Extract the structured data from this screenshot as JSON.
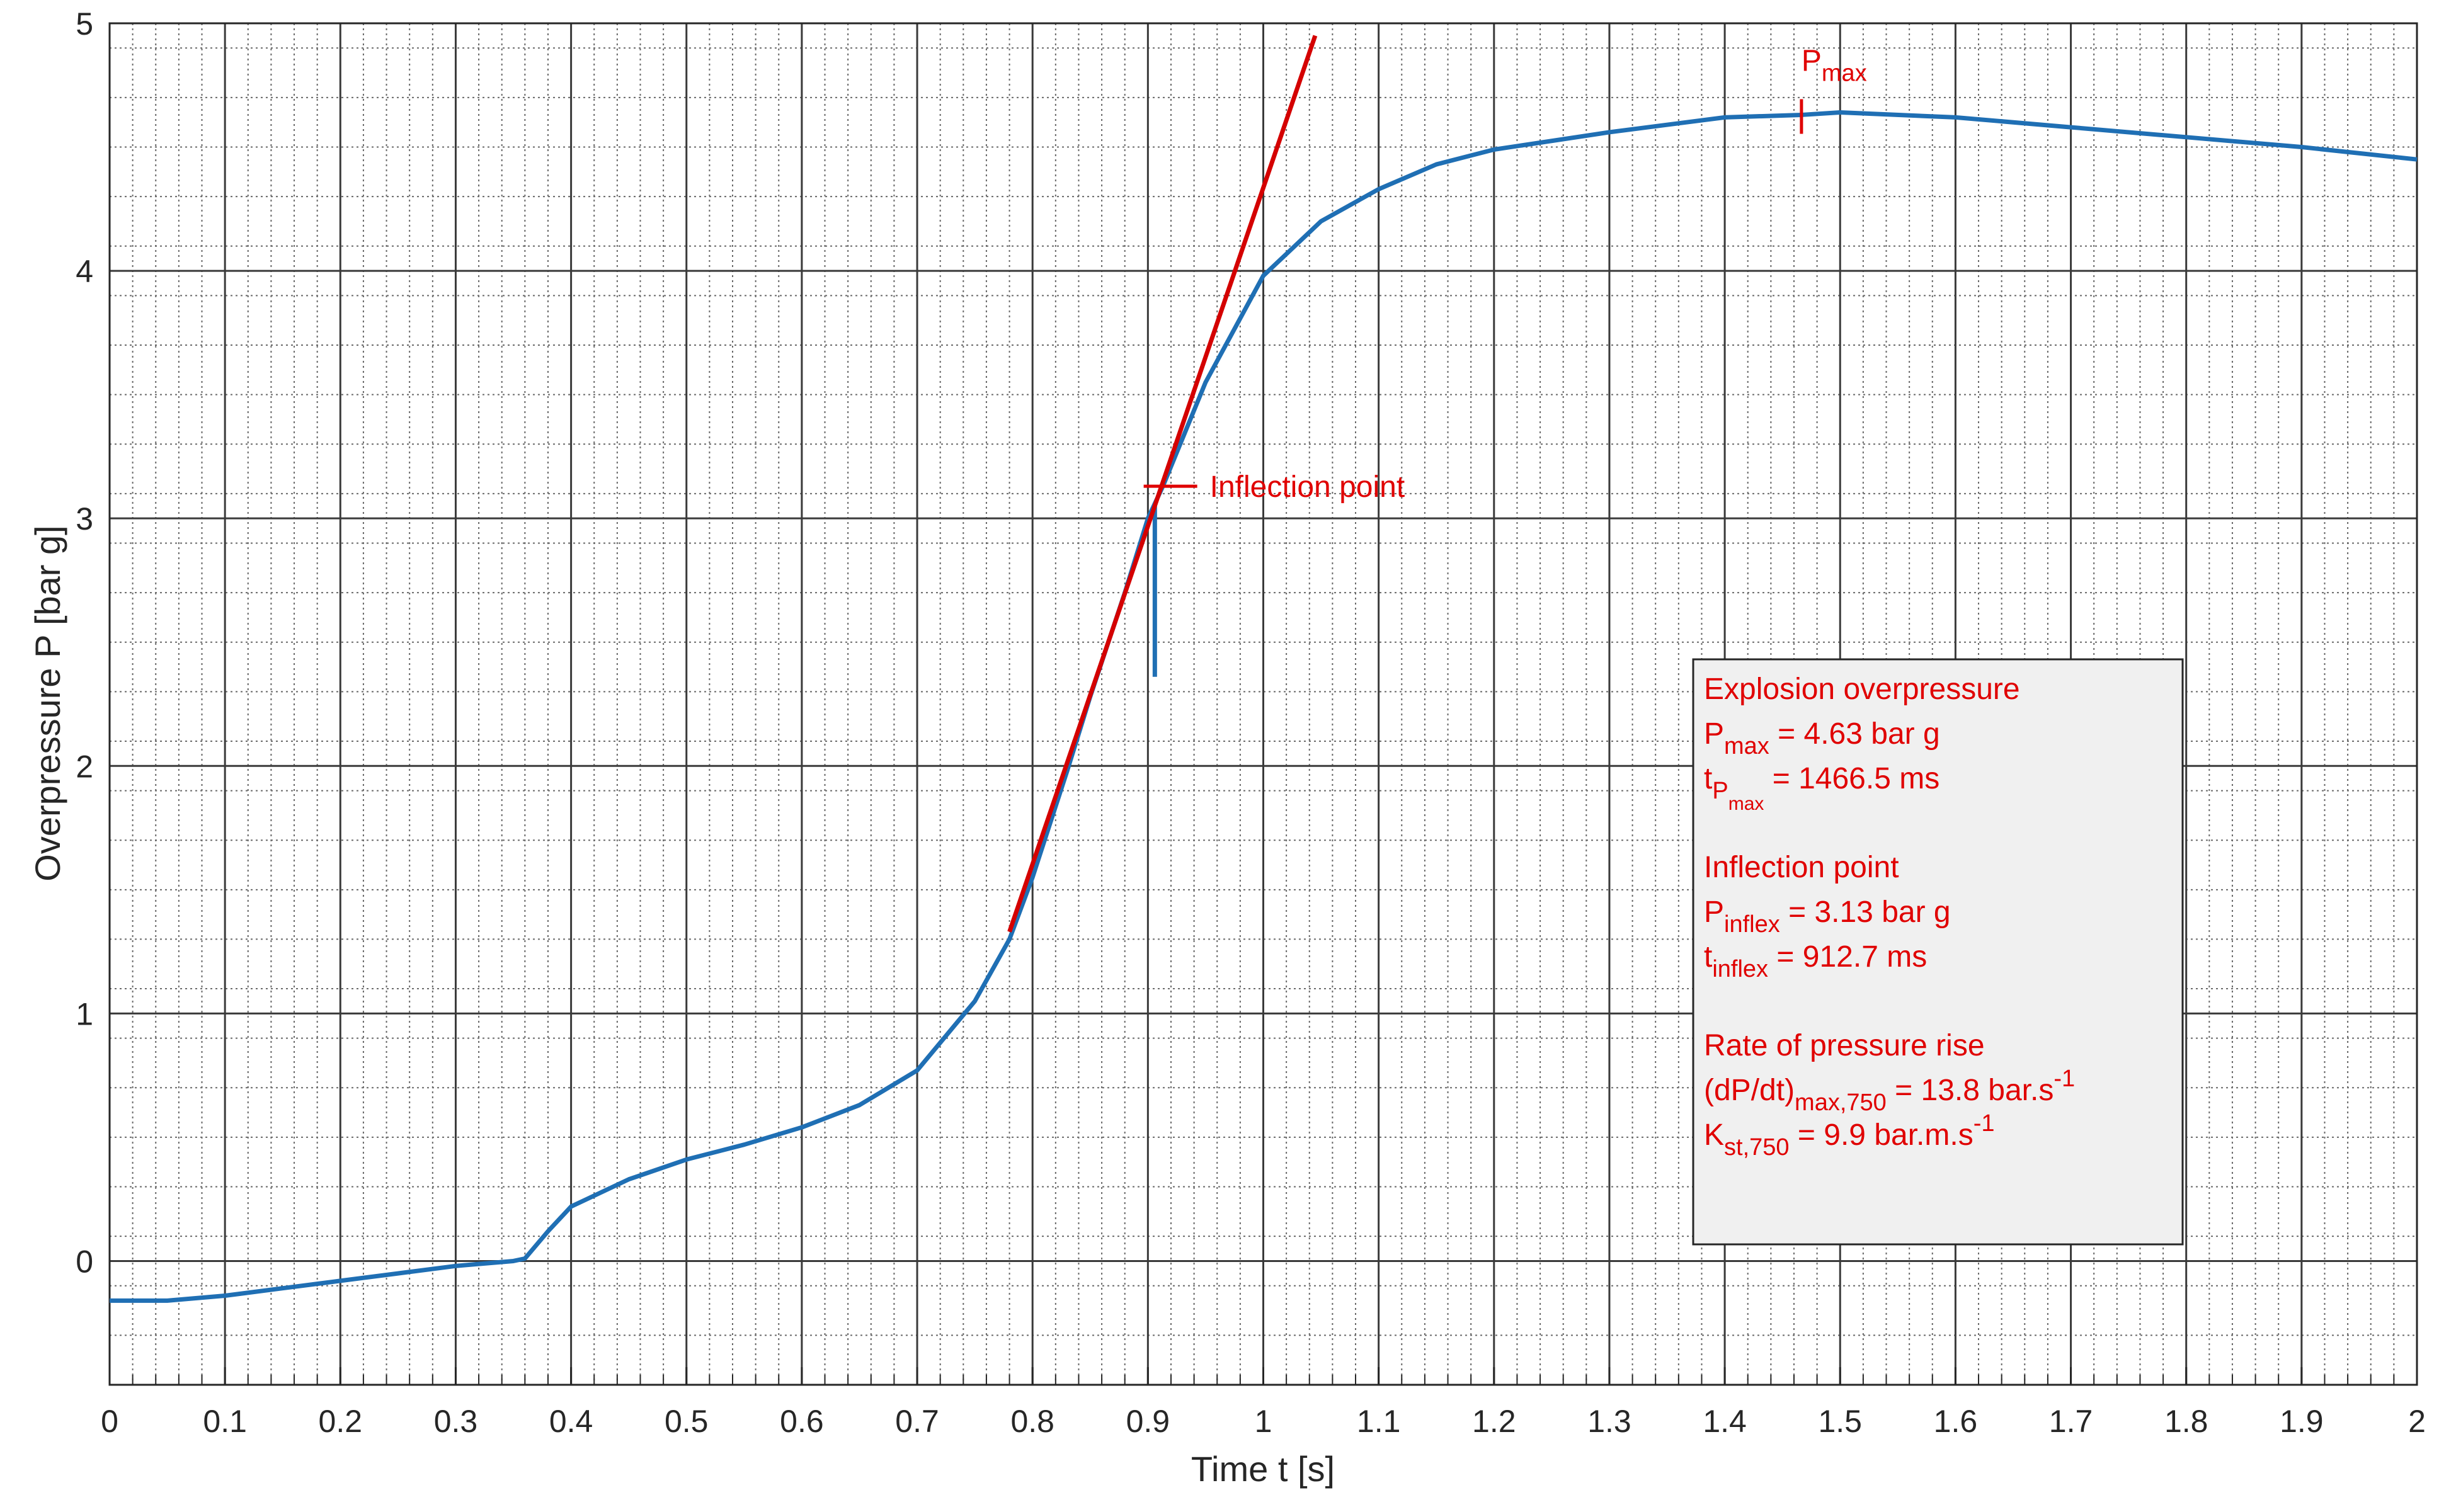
{
  "chart_data": {
    "type": "line",
    "xlabel": "Time t [s]",
    "ylabel": "Overpressure P [bar g]",
    "xlim": [
      0,
      2
    ],
    "ylim": [
      -0.5,
      5
    ],
    "xticks": [
      0,
      0.1,
      0.2,
      0.3,
      0.4,
      0.5,
      0.6,
      0.7,
      0.8,
      0.9,
      1,
      1.1,
      1.2,
      1.3,
      1.4,
      1.5,
      1.6,
      1.7,
      1.8,
      1.9,
      2
    ],
    "yticks": [
      0,
      1,
      2,
      3,
      4,
      5
    ],
    "grid": true,
    "minor_grid": {
      "x": 0.02,
      "y": 0.2
    },
    "series": [
      {
        "color": "#1f6fb4",
        "x": [
          0,
          0.05,
          0.1,
          0.15,
          0.2,
          0.25,
          0.3,
          0.35,
          0.36,
          0.38,
          0.4,
          0.45,
          0.5,
          0.55,
          0.6,
          0.65,
          0.7,
          0.75,
          0.78,
          0.8,
          0.83,
          0.85,
          0.88,
          0.9,
          0.913,
          0.95,
          1.0,
          1.05,
          1.1,
          1.15,
          1.2,
          1.3,
          1.4,
          1.4665,
          1.5,
          1.6,
          1.7,
          1.8,
          1.9,
          2.0
        ],
        "values": [
          -0.16,
          -0.16,
          -0.14,
          -0.11,
          -0.08,
          -0.05,
          -0.02,
          0.0,
          0.01,
          0.12,
          0.22,
          0.33,
          0.41,
          0.47,
          0.54,
          0.63,
          0.77,
          1.05,
          1.3,
          1.55,
          1.98,
          2.28,
          2.7,
          3.0,
          3.13,
          3.55,
          3.98,
          4.2,
          4.33,
          4.43,
          4.49,
          4.56,
          4.62,
          4.63,
          4.64,
          4.62,
          4.58,
          4.54,
          4.5,
          4.45
        ]
      },
      {
        "color": "#1f6fb4",
        "x": [
          0.906,
          0.906
        ],
        "values": [
          3.05,
          2.36
        ]
      },
      {
        "color": "#d40000",
        "x": [
          0.78,
          1.045
        ],
        "values": [
          1.33,
          4.95
        ]
      }
    ],
    "annotations": [
      {
        "x": 1.4665,
        "y": 4.63,
        "orient": "vertical",
        "color": "#e00000",
        "label": [
          {
            "text": "P"
          },
          {
            "sub": "max"
          }
        ]
      },
      {
        "x": 0.9127,
        "y": 3.13,
        "orient": "horizontal",
        "color": "#e00000",
        "label": [
          {
            "text": "Inflection point"
          }
        ]
      }
    ],
    "textbox": {
      "color": "#e00000",
      "groups": [
        [
          [
            {
              "text": "Explosion overpressure"
            }
          ],
          [
            {
              "text": "P"
            },
            {
              "sub": "max"
            },
            {
              "text": " = 4.63 bar g"
            }
          ],
          [
            {
              "text": "t"
            },
            {
              "sub": "P"
            },
            {
              "subsub": "max"
            },
            {
              "text": " = 1466.5 ms"
            }
          ]
        ],
        [
          [
            {
              "text": "Inflection point"
            }
          ],
          [
            {
              "text": " P"
            },
            {
              "sub": "inflex"
            },
            {
              "text": " = 3.13 bar g"
            }
          ],
          [
            {
              "text": " t"
            },
            {
              "sub": "inflex"
            },
            {
              "text": " = 912.7 ms"
            }
          ]
        ],
        [
          [
            {
              "text": "Rate of pressure rise"
            }
          ],
          [
            {
              "text": "(dP/dt)"
            },
            {
              "sub": "max,750"
            },
            {
              "text": " = 13.8 bar.s"
            },
            {
              "sup": "-1"
            }
          ],
          [
            {
              "text": "K"
            },
            {
              "sub": "st,750"
            },
            {
              "text": " = 9.9 bar.m.s"
            },
            {
              "sup": "-1"
            }
          ]
        ]
      ]
    }
  }
}
